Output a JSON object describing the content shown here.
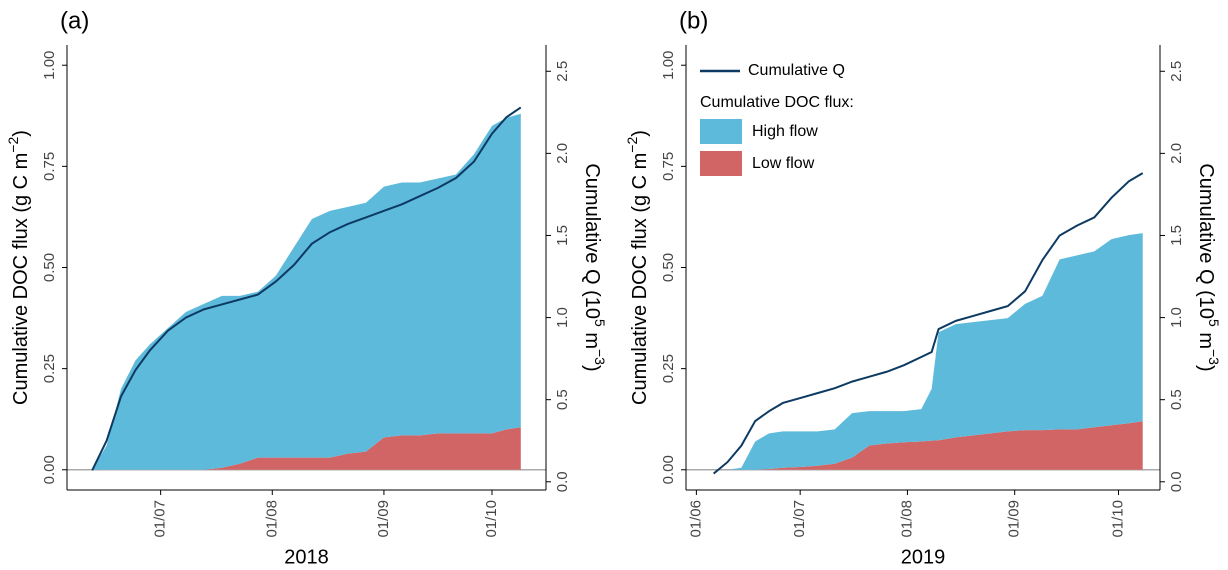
{
  "chart_data": [
    {
      "type": "area",
      "panel_label": "(a)",
      "xlabel": "2018",
      "ylabel": [
        "Cumulative DOC flux (g C m",
        "−2",
        ")"
      ],
      "y2label": [
        "Cumulative Q (10",
        "5",
        " m",
        "−3",
        ")"
      ],
      "x": [
        "2018-06-12",
        "2018-06-16",
        "2018-06-20",
        "2018-06-24",
        "2018-06-28",
        "2018-07-03",
        "2018-07-08",
        "2018-07-13",
        "2018-07-18",
        "2018-07-23",
        "2018-07-28",
        "2018-08-02",
        "2018-08-07",
        "2018-08-12",
        "2018-08-17",
        "2018-08-22",
        "2018-08-27",
        "2018-09-01",
        "2018-09-06",
        "2018-09-11",
        "2018-09-16",
        "2018-09-21",
        "2018-09-26",
        "2018-10-01",
        "2018-10-05",
        "2018-10-09"
      ],
      "series": [
        {
          "type": "line",
          "axis": "y2",
          "color": "#0d3a63",
          "values": [
            0.07,
            0.25,
            0.52,
            0.68,
            0.8,
            0.92,
            1.0,
            1.05,
            1.08,
            1.11,
            1.14,
            1.22,
            1.32,
            1.45,
            1.52,
            1.57,
            1.61,
            1.65,
            1.69,
            1.74,
            1.79,
            1.85,
            1.95,
            2.12,
            2.22,
            2.28
          ]
        },
        {
          "color": "#5ebadb",
          "values": [
            0,
            0.06,
            0.2,
            0.27,
            0.31,
            0.35,
            0.39,
            0.41,
            0.425,
            0.415,
            0.41,
            0.45,
            0.52,
            0.59,
            0.61,
            0.61,
            0.615,
            0.62,
            0.625,
            0.625,
            0.63,
            0.64,
            0.69,
            0.76,
            0.77,
            0.775
          ]
        },
        {
          "color": "#d16464",
          "values": [
            0,
            0,
            0,
            0,
            0,
            0,
            0,
            0,
            0.005,
            0.015,
            0.03,
            0.03,
            0.03,
            0.03,
            0.03,
            0.04,
            0.045,
            0.08,
            0.085,
            0.085,
            0.09,
            0.09,
            0.09,
            0.09,
            0.1,
            0.105
          ]
        }
      ],
      "xlim": [
        "2018-06-05",
        "2018-10-16"
      ],
      "xticks": [
        {
          "value": "2018-07-01",
          "label": "01/07"
        },
        {
          "value": "2018-08-01",
          "label": "01/08"
        },
        {
          "value": "2018-09-01",
          "label": "01/09"
        },
        {
          "value": "2018-10-01",
          "label": "01/10"
        }
      ],
      "ylim": [
        -0.05,
        1.05
      ],
      "yticks": [
        {
          "value": 0,
          "label": "0.00"
        },
        0.25,
        {
          "value": 0.5,
          "label": "0.50"
        },
        0.75,
        {
          "value": 1,
          "label": "1.00"
        }
      ],
      "y2lim": [
        -0.05,
        2.66
      ],
      "y2ticks": [
        {
          "value": 0,
          "label": "0.0"
        },
        0.5,
        {
          "value": 1,
          "label": "1.0"
        },
        1.5,
        {
          "value": 2,
          "label": "2.0"
        },
        2.5
      ],
      "legend": false
    },
    {
      "type": "area",
      "panel_label": "(b)",
      "xlabel": "2019",
      "ylabel": [
        "Cumulative DOC flux (g C m",
        "−2",
        ")"
      ],
      "y2label": [
        "Cumulative Q (10",
        "5",
        " m",
        "−3",
        ")"
      ],
      "x": [
        "2019-06-06",
        "2019-06-10",
        "2019-06-14",
        "2019-06-18",
        "2019-06-22",
        "2019-06-26",
        "2019-07-01",
        "2019-07-06",
        "2019-07-11",
        "2019-07-16",
        "2019-07-21",
        "2019-07-26",
        "2019-07-31",
        "2019-08-05",
        "2019-08-08",
        "2019-08-10",
        "2019-08-15",
        "2019-08-20",
        "2019-08-25",
        "2019-08-30",
        "2019-09-04",
        "2019-09-09",
        "2019-09-14",
        "2019-09-19",
        "2019-09-24",
        "2019-09-29",
        "2019-10-04",
        "2019-10-08"
      ],
      "series": [
        {
          "name": "Cumulative Q",
          "type": "line",
          "axis": "y2",
          "color": "#0d3a63",
          "values": [
            0.05,
            0.12,
            0.22,
            0.37,
            0.43,
            0.48,
            0.51,
            0.54,
            0.57,
            0.61,
            0.64,
            0.67,
            0.71,
            0.76,
            0.79,
            0.93,
            0.98,
            1.01,
            1.04,
            1.07,
            1.16,
            1.35,
            1.5,
            1.56,
            1.61,
            1.73,
            1.83,
            1.88
          ]
        },
        {
          "name": "High flow",
          "color": "#5ebadb",
          "values": [
            0,
            0,
            0.005,
            0.07,
            0.088,
            0.09,
            0.088,
            0.085,
            0.085,
            0.11,
            0.085,
            0.08,
            0.077,
            0.08,
            0.128,
            0.267,
            0.28,
            0.28,
            0.28,
            0.28,
            0.312,
            0.332,
            0.42,
            0.43,
            0.435,
            0.46,
            0.465,
            0.465
          ]
        },
        {
          "name": "Low flow",
          "color": "#d16464",
          "values": [
            0,
            0,
            0,
            0,
            0.002,
            0.005,
            0.007,
            0.01,
            0.015,
            0.03,
            0.06,
            0.065,
            0.068,
            0.07,
            0.072,
            0.073,
            0.08,
            0.085,
            0.09,
            0.095,
            0.098,
            0.098,
            0.1,
            0.1,
            0.105,
            0.11,
            0.115,
            0.12
          ]
        }
      ],
      "legend_title": "Cumulative DOC flux:",
      "xlim": [
        "2019-05-29",
        "2019-10-13"
      ],
      "xticks": [
        {
          "value": "2019-06-01",
          "label": "01/06"
        },
        {
          "value": "2019-07-01",
          "label": "01/07"
        },
        {
          "value": "2019-08-01",
          "label": "01/08"
        },
        {
          "value": "2019-09-01",
          "label": "01/09"
        },
        {
          "value": "2019-10-01",
          "label": "01/10"
        }
      ],
      "ylim": [
        -0.05,
        1.05
      ],
      "yticks": [
        {
          "value": 0,
          "label": "0.00"
        },
        0.25,
        {
          "value": 0.5,
          "label": "0.50"
        },
        0.75,
        {
          "value": 1,
          "label": "1.00"
        }
      ],
      "y2lim": [
        -0.05,
        2.66
      ],
      "y2ticks": [
        {
          "value": 0,
          "label": "0.0"
        },
        0.5,
        {
          "value": 1,
          "label": "1.0"
        },
        1.5,
        {
          "value": 2,
          "label": "2.0"
        },
        2.5
      ],
      "legend": "top-left"
    }
  ]
}
